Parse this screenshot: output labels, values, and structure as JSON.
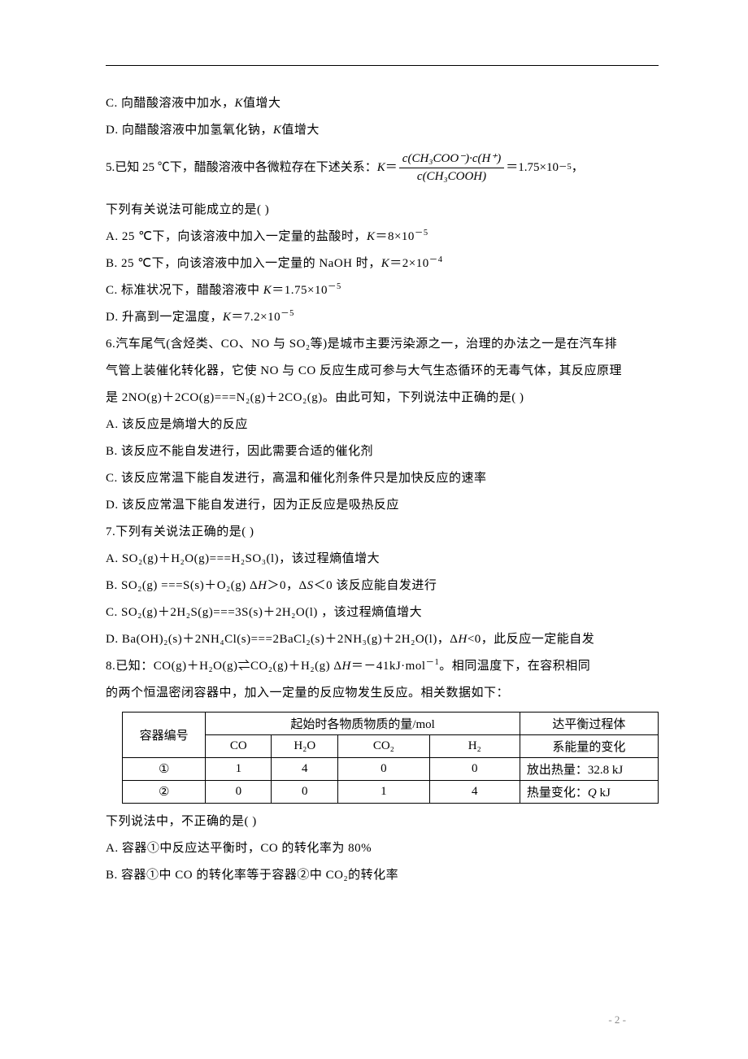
{
  "option_c4": "C.  向醋酸溶液中加水，",
  "option_c4_tail": "值增大",
  "option_d4": "D.  向醋酸溶液中加氢氧化钠，",
  "option_d4_tail": "值增大",
  "q5_lead": "5.已知 25 ℃下，醋酸溶液中各微粒存在下述关系：",
  "q5_eq_tail": "＝1.75×10",
  "q5_eq_exp": "－5",
  "q5_eq_comma": "，",
  "q5_line2": "下列有关说法可能成立的是(    )",
  "q5_a": "A.  25 ℃下，向该溶液中加入一定量的盐酸时，",
  "q5_a_tail": "＝8×10",
  "q5_a_exp": "－5",
  "q5_b": "B.  25 ℃下，向该溶液中加入一定量的 NaOH 时，",
  "q5_b_tail": "＝2×10",
  "q5_b_exp": "－4",
  "q5_c": "C.  标准状况下，醋酸溶液中 ",
  "q5_c_tail": "＝1.75×10",
  "q5_c_exp": "－5",
  "q5_d": "D.  升高到一定温度，",
  "q5_d_tail": "＝7.2×10",
  "q5_d_exp": "－5",
  "q6_l1": "6.汽车尾气(含烃类、CO、NO 与 SO₂等)是城市主要污染源之一，治理的办法之一是在汽车排",
  "q6_l2": "气管上装催化转化器，它使 NO 与 CO 反应生成可参与大气生态循环的无毒气体，其反应原理",
  "q6_l3": "是 2NO(g)＋2CO(g)===N₂(g)＋2CO₂(g)。由此可知，下列说法中正确的是(    )",
  "q6_a": "A.  该反应是熵增大的反应",
  "q6_b": "B.  该反应不能自发进行，因此需要合适的催化剂",
  "q6_c": "C.  该反应常温下能自发进行，高温和催化剂条件只是加快反应的速率",
  "q6_d": "D.  该反应常温下能自发进行，因为正反应是吸热反应",
  "q7_stem": "7.下列有关说法正确的是(    )",
  "q7_a": "A.  SO₂(g)＋H₂O(g)===H₂SO₃(l)，该过程熵值增大",
  "q7_b_pre": "B.  SO₂(g) ===S(s)＋O₂(g)     Δ",
  "q7_b_mid": "＞0，Δ",
  "q7_b_tail": "＜0 该反应能自发进行",
  "q7_c": "C.  SO₂(g)＋2H₂S(g)===3S(s)＋2H₂O(l) ，该过程熵值增大",
  "q7_d_pre": "D.  Ba(OH)₂(s)＋2NH₄Cl(s)===2BaCl₂(s)＋2NH₃(g)＋2H₂O(l)，Δ",
  "q7_d_tail": "0，此反应一定能自发",
  "q8_l1_pre": "8.已知：CO(g)＋H₂O(g)⇌CO₂(g)＋H₂(g)   Δ",
  "q8_l1_mid": "＝－41kJ·mol",
  "q8_l1_exp": "－1",
  "q8_l1_tail": "。相同温度下，在容积相同",
  "q8_l2": "的两个恒温密闭容器中，加入一定量的反应物发生反应。相关数据如下：",
  "table": {
    "h1": "容器编号",
    "h2": "起始时各物质物质的量/mol",
    "h3": "达平衡过程体",
    "c1": "CO",
    "c2": "H₂O",
    "c3": "CO₂",
    "c4": "H₂",
    "c5": "系能量的变化",
    "r1_id": "①",
    "r1_v1": "1",
    "r1_v2": "4",
    "r1_v3": "0",
    "r1_v4": "0",
    "r1_e": "放出热量：32.8 kJ",
    "r2_id": "②",
    "r2_v1": "0",
    "r2_v2": "0",
    "r2_v3": "1",
    "r2_v4": "4",
    "r2_e_pre": "热量变化：",
    "r2_e_tail": " kJ"
  },
  "q8_after": "下列说法中，不正确的是(    )",
  "q8_a": "A.  容器①中反应达平衡时，CO 的转化率为 80%",
  "q8_b": "B.  容器①中 CO 的转化率等于容器②中 CO₂的转化率",
  "footer": "- 2 -",
  "K": "K",
  "H": "H",
  "S": "S",
  "Q": "Q",
  "lt": "<",
  "frac_num": "c(CH₃COO⁻)·c(H⁺)",
  "frac_den": "c(CH₃COOH)",
  "colwidths": {
    "id": 95,
    "v": 70,
    "co2": 105,
    "h2": 105,
    "e": 170
  }
}
